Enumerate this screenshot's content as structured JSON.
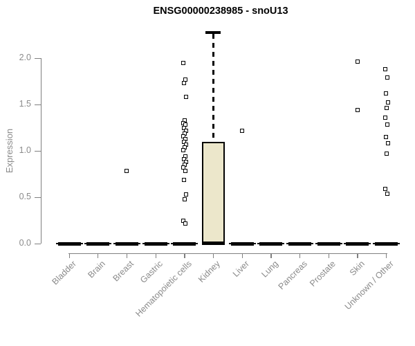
{
  "chart_data": {
    "type": "boxplot",
    "title": "ENSG00000238985 - snoU13",
    "xlabel": "",
    "ylabel": "Expression",
    "ylim": [
      0,
      2.3
    ],
    "yticks": [
      "0.0",
      "0.5",
      "1.0",
      "1.5",
      "2.0"
    ],
    "grid": false,
    "legend": false,
    "categories": [
      "Bladder",
      "Brain",
      "Breast",
      "Gastric",
      "Hematopoietic cells",
      "Kidney",
      "Liver",
      "Lung",
      "Pancreas",
      "Prostate",
      "Skin",
      "Unknown / Other"
    ],
    "boxes": [
      {
        "category": "Bladder",
        "q1": 0,
        "median": 0,
        "q3": 0,
        "whisker_low": 0,
        "whisker_high": 0,
        "outliers": []
      },
      {
        "category": "Brain",
        "q1": 0,
        "median": 0,
        "q3": 0,
        "whisker_low": 0,
        "whisker_high": 0,
        "outliers": []
      },
      {
        "category": "Breast",
        "q1": 0,
        "median": 0,
        "q3": 0,
        "whisker_low": 0,
        "whisker_high": 0,
        "outliers": [
          0.78
        ]
      },
      {
        "category": "Gastric",
        "q1": 0,
        "median": 0,
        "q3": 0,
        "whisker_low": 0,
        "whisker_high": 0,
        "outliers": []
      },
      {
        "category": "Hematopoietic cells",
        "q1": 0,
        "median": 0,
        "q3": 0,
        "whisker_low": 0,
        "whisker_high": 0,
        "outliers": [
          1.95,
          1.77,
          1.73,
          1.58,
          1.33,
          1.3,
          1.28,
          1.25,
          1.22,
          1.19,
          1.16,
          1.13,
          1.1,
          1.07,
          1.04,
          1.01,
          0.94,
          0.91,
          0.88,
          0.85,
          0.82,
          0.78,
          0.69,
          0.53,
          0.48,
          0.25,
          0.22
        ]
      },
      {
        "category": "Kidney",
        "q1": 0,
        "median": 0,
        "q3": 1.1,
        "whisker_low": 0,
        "whisker_high": 2.28,
        "outliers": []
      },
      {
        "category": "Liver",
        "q1": 0,
        "median": 0,
        "q3": 0,
        "whisker_low": 0,
        "whisker_high": 0,
        "outliers": [
          1.22
        ]
      },
      {
        "category": "Lung",
        "q1": 0,
        "median": 0,
        "q3": 0,
        "whisker_low": 0,
        "whisker_high": 0,
        "outliers": []
      },
      {
        "category": "Pancreas",
        "q1": 0,
        "median": 0,
        "q3": 0,
        "whisker_low": 0,
        "whisker_high": 0,
        "outliers": []
      },
      {
        "category": "Prostate",
        "q1": 0,
        "median": 0,
        "q3": 0,
        "whisker_low": 0,
        "whisker_high": 0,
        "outliers": []
      },
      {
        "category": "Skin",
        "q1": 0,
        "median": 0,
        "q3": 0,
        "whisker_low": 0,
        "whisker_high": 0,
        "outliers": [
          1.96,
          1.44
        ]
      },
      {
        "category": "Unknown / Other",
        "q1": 0,
        "median": 0,
        "q3": 0,
        "whisker_low": 0,
        "whisker_high": 0,
        "outliers": [
          1.88,
          1.79,
          1.62,
          1.52,
          1.46,
          1.36,
          1.28,
          1.15,
          1.08,
          0.97,
          0.59,
          0.54
        ]
      }
    ],
    "colors": {
      "box_fill": "#ece7cb",
      "box_border": "#000000",
      "outlier_stroke": "#000000",
      "axis_text": "#8a8a8a",
      "axis_line": "#7f7f7f",
      "title_text": "#000000"
    }
  }
}
